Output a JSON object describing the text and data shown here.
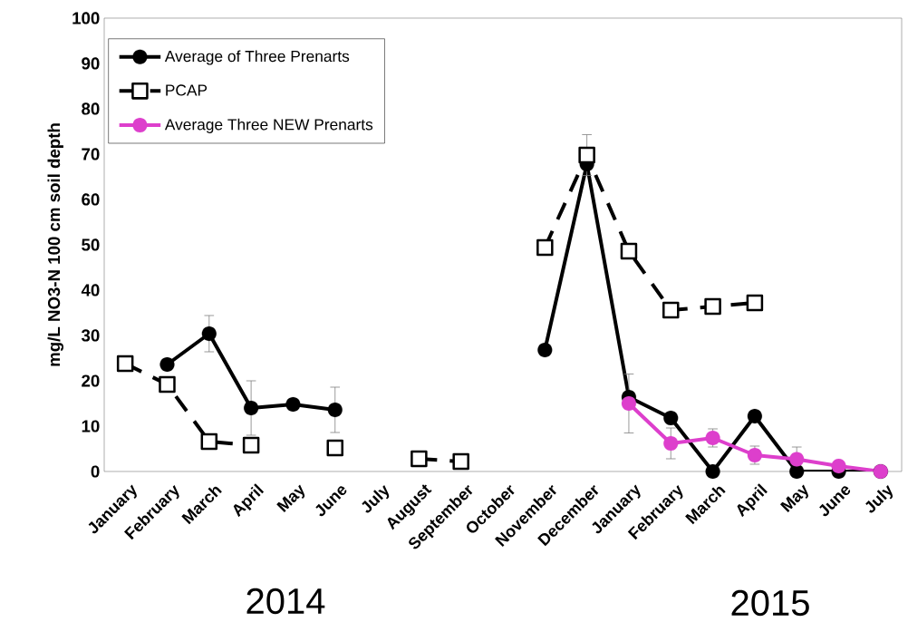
{
  "chart_data": {
    "type": "line",
    "ylabel": "mg/L NO3-N 100 cm soil depth",
    "categories": [
      "January",
      "February",
      "March",
      "April",
      "May",
      "June",
      "July",
      "August",
      "September",
      "October",
      "November",
      "December",
      "January",
      "February",
      "March",
      "April",
      "May",
      "June",
      "July"
    ],
    "ylim": [
      0,
      100
    ],
    "yticks": [
      0,
      10,
      20,
      30,
      40,
      50,
      60,
      70,
      80,
      90,
      100
    ],
    "legend": "top left",
    "series": [
      {
        "name": "Average of Three Prenarts",
        "color": "#000000",
        "marker": "circle",
        "line_style": "solid",
        "values": [
          null,
          23.6,
          30.4,
          14,
          14.8,
          13.6,
          null,
          null,
          null,
          null,
          26.8,
          67.8,
          16.4,
          11.8,
          0,
          12.2,
          0,
          0,
          0
        ],
        "errors": [
          null,
          null,
          4,
          6,
          null,
          5,
          null,
          null,
          null,
          null,
          null,
          null,
          null,
          null,
          null,
          null,
          null,
          null,
          null
        ]
      },
      {
        "name": "PCAP",
        "color": "#000000",
        "marker": "square",
        "line_style": "dashed",
        "values": [
          23.8,
          19.2,
          6.6,
          5.8,
          null,
          5.2,
          null,
          2.8,
          2.2,
          null,
          49.4,
          69.8,
          48.6,
          35.6,
          36.4,
          37.2,
          null,
          null,
          null
        ],
        "errors": [
          null,
          null,
          null,
          null,
          null,
          null,
          null,
          null,
          null,
          null,
          null,
          4.5,
          null,
          null,
          null,
          null,
          null,
          null,
          null
        ]
      },
      {
        "name": "Average Three NEW Prenarts",
        "color": "#dd3fcc",
        "marker": "circle",
        "line_style": "solid",
        "values": [
          null,
          null,
          null,
          null,
          null,
          null,
          null,
          null,
          null,
          null,
          null,
          null,
          15,
          6.2,
          7.4,
          3.6,
          2.7,
          1.2,
          0
        ],
        "errors": [
          null,
          null,
          null,
          null,
          null,
          null,
          null,
          null,
          null,
          null,
          null,
          null,
          6.5,
          3.4,
          2,
          2,
          2.7,
          null,
          null
        ]
      }
    ],
    "annotations": [
      "2014",
      "2015"
    ]
  }
}
